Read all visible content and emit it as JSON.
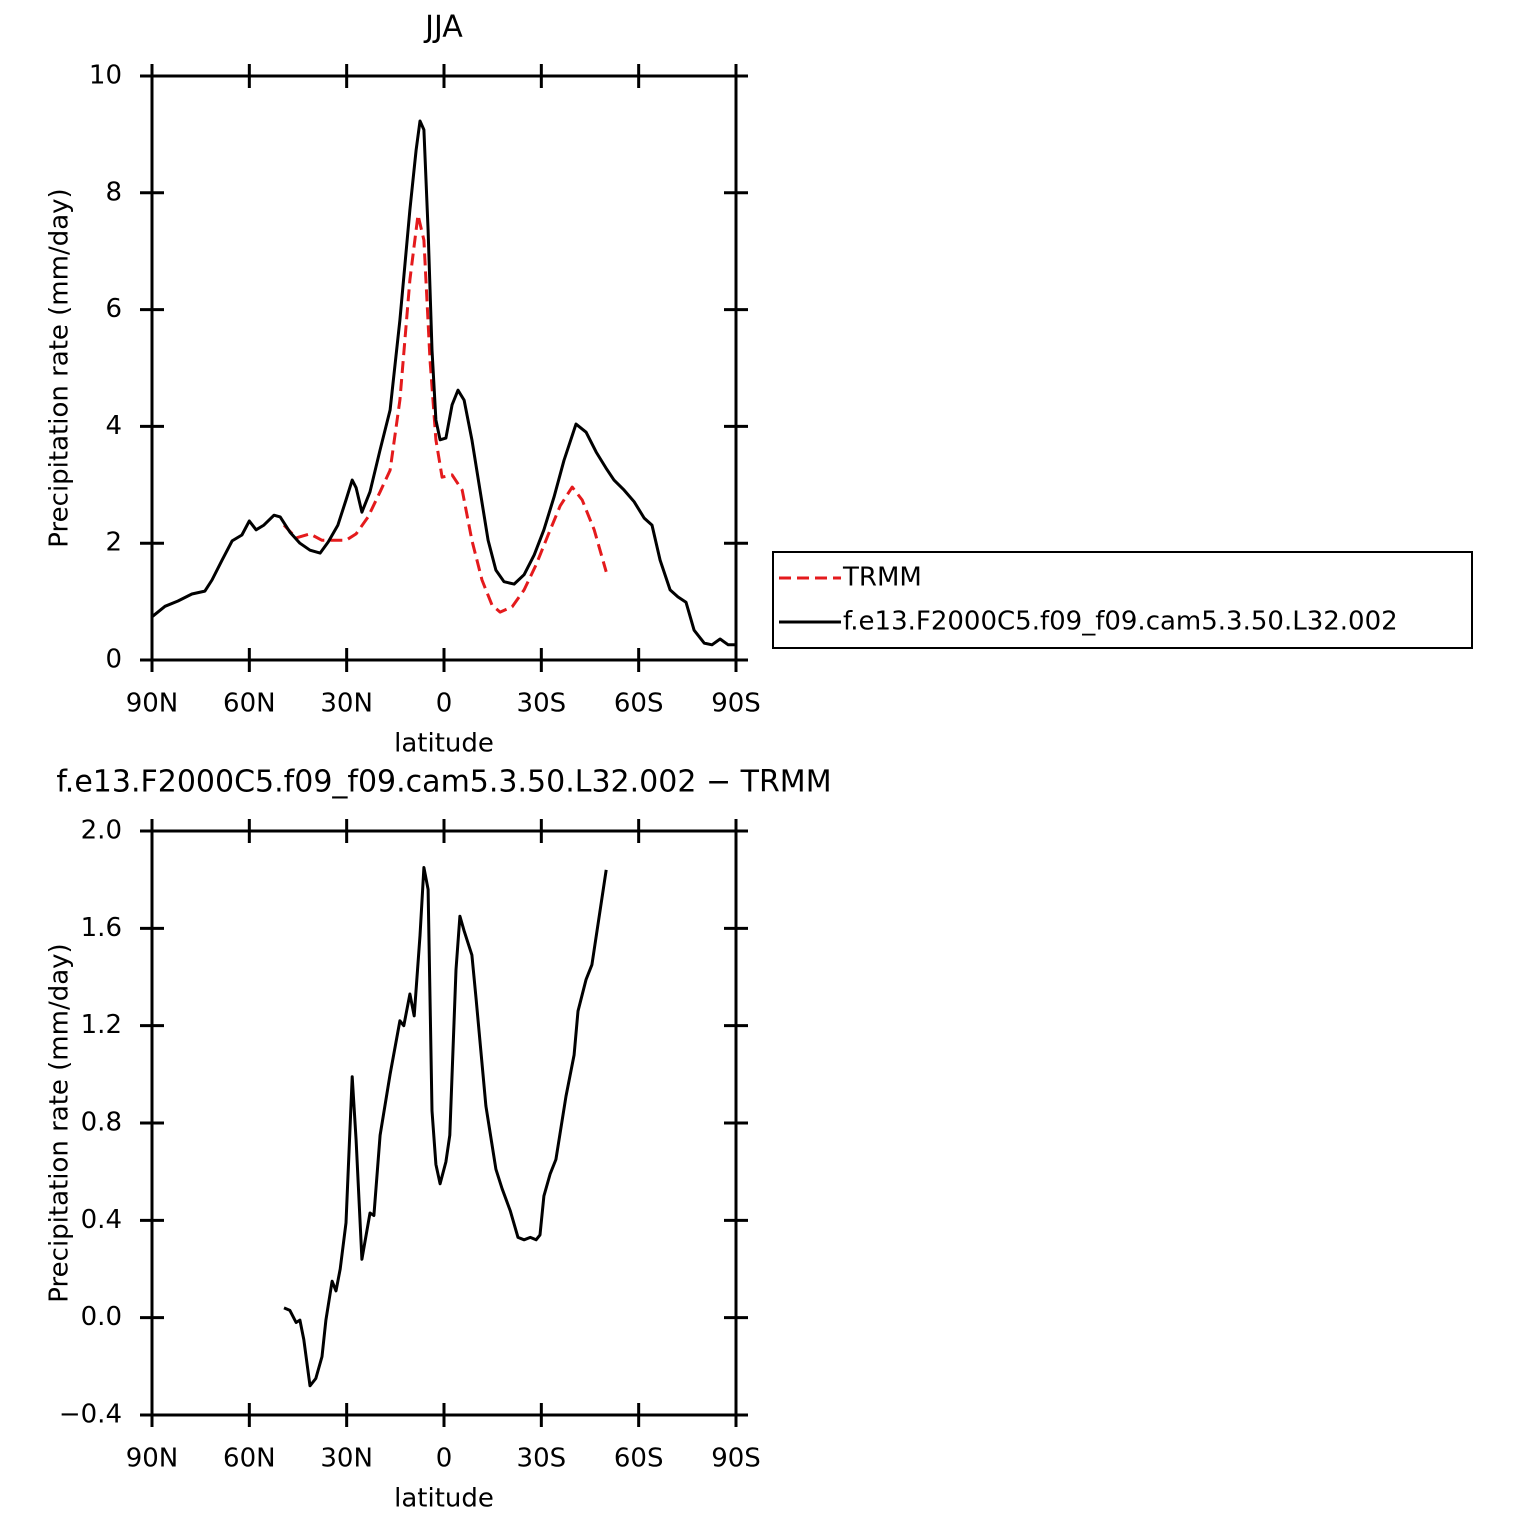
{
  "chart_data": [
    {
      "type": "line",
      "title": "JJA",
      "xlabel": "latitude",
      "ylabel": "Precipitation rate (mm/day)",
      "xlim": [
        90,
        -90
      ],
      "xticks": [
        {
          "value": 90,
          "label": "90N"
        },
        {
          "value": 60,
          "label": "60N"
        },
        {
          "value": 30,
          "label": "30N"
        },
        0,
        {
          "value": -30,
          "label": "30S"
        },
        {
          "value": -60,
          "label": "60S"
        },
        {
          "value": -90,
          "label": "90S"
        }
      ],
      "ylim": [
        0,
        10
      ],
      "yticks": [
        0,
        2,
        4,
        6,
        8,
        10
      ],
      "legend": "outside-right",
      "series": [
        {
          "name": "TRMM",
          "color": "#e41a1c",
          "line_style": "dashed",
          "x": [
            49.3,
            45.6,
            41.3,
            37.6,
            33.9,
            30.2,
            27.1,
            23.4,
            19.7,
            16.6,
            13.6,
            10.5,
            8,
            6.2,
            4.3,
            2.5,
            0.6,
            -2.5,
            -5.6,
            -8.6,
            -11.7,
            -14.8,
            -17.3,
            -21,
            -24.7,
            -28.4,
            -32.1,
            -35.8,
            -39.5,
            -42.6,
            -46.3,
            -50
          ],
          "values": [
            2.31,
            2.09,
            2.16,
            2.05,
            2.05,
            2.05,
            2.16,
            2.45,
            2.88,
            3.25,
            4.45,
            6.51,
            7.62,
            7.19,
            5.14,
            3.77,
            3.13,
            3.17,
            2.91,
            2.05,
            1.37,
            0.94,
            0.82,
            0.91,
            1.2,
            1.63,
            2.14,
            2.64,
            2.96,
            2.74,
            2.23,
            1.51
          ]
        },
        {
          "name": "f.e13.F2000C5.f09_f09.cam5.3.50.L32.002",
          "color": "#000000",
          "line_style": "solid",
          "x": [
            90,
            86,
            82,
            77.7,
            73.7,
            71.5,
            68.4,
            65.3,
            62.3,
            60,
            57.9,
            55.5,
            52.4,
            50.5,
            47.5,
            44.4,
            41.3,
            38.2,
            35.7,
            32.7,
            30.2,
            28.3,
            27.1,
            25.3,
            22.8,
            19.7,
            16.6,
            13.6,
            10.5,
            8.6,
            7.4,
            6.2,
            4.9,
            3.7,
            2.5,
            1.2,
            -0.6,
            -2.5,
            -4.3,
            -6.2,
            -8.6,
            -11.1,
            -13.6,
            -16,
            -18.5,
            -21.6,
            -24.7,
            -27.8,
            -30.8,
            -33.9,
            -37,
            -40.7,
            -43.8,
            -46.9,
            -49.9,
            -52.4,
            -55.5,
            -58.6,
            -61.7,
            -64.1,
            -66.6,
            -69.7,
            -72.1,
            -74.6,
            -77.1,
            -80.2,
            -82.6,
            -85.1,
            -87.6,
            -90
          ],
          "values": [
            0.74,
            0.92,
            1.01,
            1.13,
            1.18,
            1.37,
            1.71,
            2.04,
            2.14,
            2.38,
            2.23,
            2.31,
            2.48,
            2.45,
            2.19,
            2.0,
            1.88,
            1.83,
            2.02,
            2.31,
            2.74,
            3.08,
            2.95,
            2.53,
            2.88,
            3.6,
            4.28,
            5.82,
            7.71,
            8.73,
            9.23,
            9.08,
            7.36,
            5.31,
            4.11,
            3.77,
            3.8,
            4.37,
            4.62,
            4.45,
            3.77,
            2.91,
            2.05,
            1.54,
            1.34,
            1.3,
            1.46,
            1.8,
            2.23,
            2.79,
            3.42,
            4.04,
            3.9,
            3.56,
            3.29,
            3.08,
            2.91,
            2.71,
            2.43,
            2.31,
            1.71,
            1.2,
            1.08,
            0.99,
            0.51,
            0.29,
            0.26,
            0.36,
            0.26,
            0.26
          ]
        }
      ]
    },
    {
      "type": "line",
      "title": "f.e13.F2000C5.f09_f09.cam5.3.50.L32.002 − TRMM",
      "xlabel": "latitude",
      "ylabel": "Precipitation rate (mm/day)",
      "xlim": [
        90,
        -90
      ],
      "xticks": [
        {
          "value": 90,
          "label": "90N"
        },
        {
          "value": 60,
          "label": "60N"
        },
        {
          "value": 30,
          "label": "30N"
        },
        0,
        {
          "value": -30,
          "label": "30S"
        },
        {
          "value": -60,
          "label": "60S"
        },
        {
          "value": -90,
          "label": "90S"
        }
      ],
      "ylim": [
        -0.4,
        2
      ],
      "yticks": [
        {
          "value": -0.4,
          "label": "−0.4"
        },
        {
          "value": 0,
          "label": "0.0"
        },
        0.4,
        0.8,
        1.2,
        1.6,
        {
          "value": 2,
          "label": "2.0"
        }
      ],
      "series": [
        {
          "color": "#000000",
          "line_style": "solid",
          "x": [
            49.3,
            47.5,
            45.6,
            44.4,
            43.2,
            41.3,
            39.5,
            37.6,
            36.4,
            34.5,
            33.3,
            32,
            30.2,
            28.3,
            27.1,
            25.3,
            22.8,
            21.6,
            19.7,
            16.6,
            13.6,
            12.4,
            10.5,
            9.2,
            7.4,
            6.2,
            4.9,
            3.7,
            2.5,
            1.2,
            -0.6,
            -1.8,
            -3.7,
            -4.9,
            -6.2,
            -8.6,
            -9.9,
            -12.9,
            -16,
            -17.9,
            -20.4,
            -22.8,
            -24.7,
            -26.6,
            -28.4,
            -29.6,
            -30.8,
            -32.7,
            -34.5,
            -37.6,
            -40.1,
            -41.3,
            -43.8,
            -45.6,
            -50
          ],
          "values": [
            0.04,
            0.03,
            -0.02,
            -0.01,
            -0.09,
            -0.28,
            -0.25,
            -0.16,
            -0.01,
            0.15,
            0.11,
            0.2,
            0.39,
            0.99,
            0.73,
            0.24,
            0.43,
            0.42,
            0.75,
            1.0,
            1.22,
            1.2,
            1.33,
            1.24,
            1.57,
            1.85,
            1.76,
            0.85,
            0.63,
            0.55,
            0.64,
            0.75,
            1.43,
            1.65,
            1.59,
            1.49,
            1.31,
            0.87,
            0.61,
            0.53,
            0.44,
            0.33,
            0.32,
            0.33,
            0.32,
            0.34,
            0.5,
            0.59,
            0.65,
            0.91,
            1.08,
            1.26,
            1.39,
            1.45,
            1.84
          ]
        }
      ]
    }
  ]
}
